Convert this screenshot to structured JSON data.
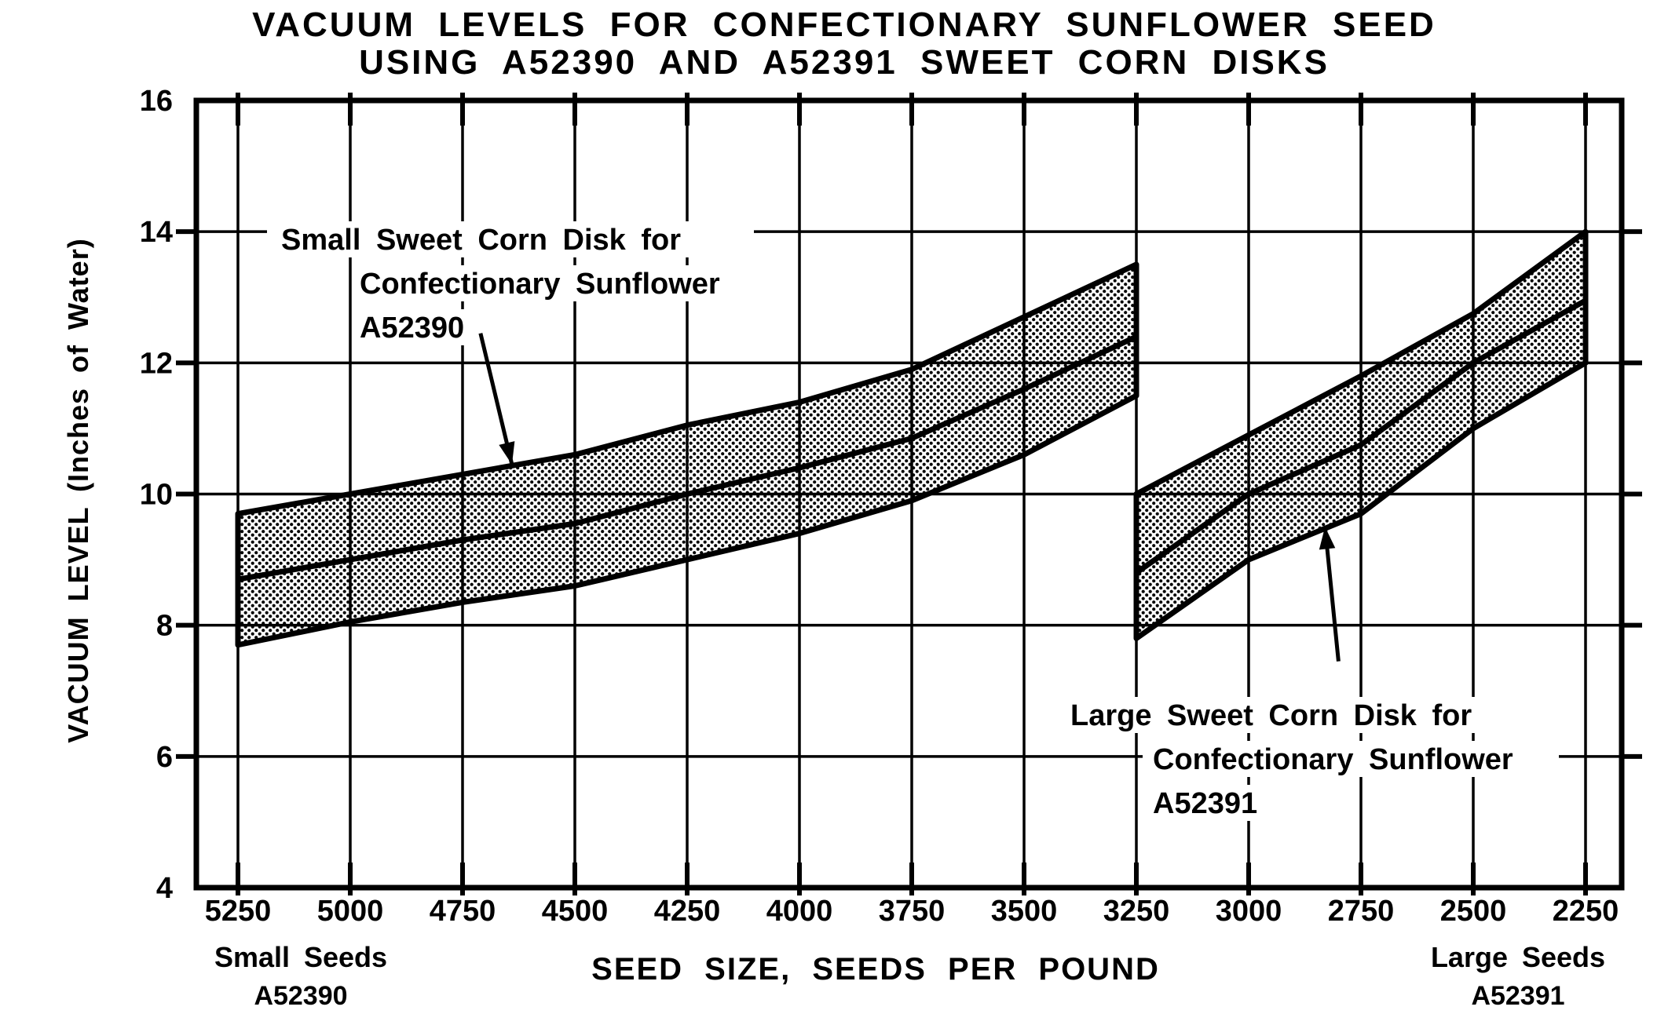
{
  "chart_data": {
    "type": "area",
    "title_lines": [
      "VACUUM LEVELS FOR CONFECTIONARY SUNFLOWER SEED",
      "USING A52390 AND A52391 SWEET CORN DISKS"
    ],
    "xlabel": "SEED SIZE, SEEDS PER POUND",
    "ylabel": "VACUUM LEVEL (Inches of Water)",
    "x_axis": {
      "ticks": [
        5250,
        5000,
        4750,
        4500,
        4250,
        4000,
        3750,
        3500,
        3250,
        3000,
        2750,
        2500,
        2250
      ],
      "direction": "descending",
      "range": [
        5250,
        2250
      ]
    },
    "y_axis": {
      "ticks": [
        16,
        14,
        12,
        10,
        8,
        6,
        4
      ],
      "range": [
        4,
        16
      ]
    },
    "grid": true,
    "series": [
      {
        "name": "Small Sweet Corn Disk A52390",
        "x": [
          5250,
          5000,
          4750,
          4500,
          4250,
          4000,
          3750,
          3500,
          3250
        ],
        "lower": [
          7.7,
          8.05,
          8.35,
          8.6,
          9.0,
          9.4,
          9.9,
          10.6,
          11.5
        ],
        "mid": [
          8.7,
          9.0,
          9.3,
          9.55,
          10.0,
          10.4,
          10.85,
          11.6,
          12.4
        ],
        "upper": [
          9.7,
          10.0,
          10.3,
          10.6,
          11.05,
          11.4,
          11.9,
          12.7,
          13.5
        ]
      },
      {
        "name": "Large Sweet Corn Disk A52391",
        "x": [
          3250,
          3000,
          2750,
          2500,
          2250
        ],
        "lower": [
          7.8,
          9.0,
          9.7,
          11.0,
          12.0
        ],
        "mid": [
          8.8,
          10.0,
          10.75,
          12.0,
          12.95
        ],
        "upper": [
          10.0,
          10.9,
          11.8,
          12.75,
          14.0
        ]
      }
    ],
    "annotations": [
      {
        "id": "small-disk",
        "lines": [
          "Small Sweet Corn Disk for",
          "Confectionary Sunflower",
          "A52390"
        ],
        "arrow_from": {
          "seeds": 4710,
          "vacuum": 12.45
        },
        "arrow_to": {
          "seeds": 4640,
          "vacuum": 10.45
        }
      },
      {
        "id": "large-disk",
        "lines": [
          "Large Sweet Corn Disk for",
          "Confectionary Sunflower",
          "A52391"
        ],
        "arrow_from": {
          "seeds": 2800,
          "vacuum": 7.45
        },
        "arrow_to": {
          "seeds": 2830,
          "vacuum": 9.5
        }
      }
    ],
    "corner_labels": {
      "left": {
        "main": "Small Seeds",
        "sub": "A52390"
      },
      "right": {
        "main": "Large Seeds",
        "sub": "A52391"
      }
    },
    "colors": {
      "ink": "#000000",
      "paper": "#ffffff"
    }
  }
}
